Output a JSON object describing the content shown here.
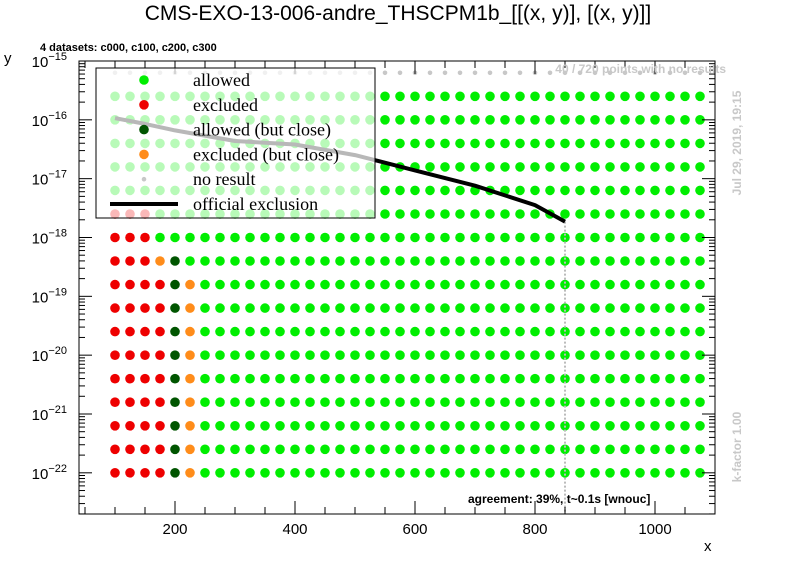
{
  "header": {
    "title": "CMS-EXO-13-006-andre_THSCPM1b_[[(x, y)], [(x, y)]]",
    "datasets_note": "4 datasets: c000, c100, c200, c300",
    "no_result_note": "40 / 720 points with no results",
    "date_note": "Jul 29, 2019, 19:15",
    "kfactor_note": "k-factor 1.00",
    "agreement_note": "agreement: 39%, t~0.1s [wnouc]"
  },
  "chart_data": {
    "type": "scatter",
    "xlabel": "x",
    "ylabel": "y",
    "xlim": [
      40,
      1100
    ],
    "ylim_log10": [
      -22.7,
      -15
    ],
    "log_y": true,
    "grid": false,
    "x_ticks": [
      200,
      400,
      600,
      800,
      1000
    ],
    "y_tick_exponents": [
      -22,
      -21,
      -20,
      -19,
      -18,
      -17,
      -16,
      -15
    ],
    "y_tick_labels": [
      "10",
      "10",
      "10",
      "10",
      "10",
      "10",
      "10",
      "10"
    ],
    "y_tick_sups": [
      "−22",
      "−21",
      "−20",
      "−19",
      "−18",
      "−17",
      "−16",
      "−15"
    ],
    "grid_x": {
      "start": 100,
      "step": 25,
      "count": 40
    },
    "grid_log10y": [
      -15.2,
      -15.6,
      -16,
      -16.4,
      -16.8,
      -17.2,
      -17.6,
      -18,
      -18.4,
      -18.8,
      -19.2,
      -19.6,
      -20,
      -20.4,
      -20.8,
      -21.2,
      -21.6,
      -22
    ],
    "row_overrides": {
      "-15.2": {
        "A": "na"
      },
      "-15.6": {
        "B": "ok"
      },
      "-16": {
        "B": "ok"
      },
      "-16.4": {
        "B": "ok"
      },
      "-16.8": {
        "B": "ok"
      },
      "-17.2": {
        "B": "ok"
      },
      "-17.6": {
        "0": "ex",
        "1": "ex",
        "2": "ex",
        "3": "ok",
        "B": "ok"
      },
      "-18": {
        "0": "ex",
        "1": "ex",
        "2": "ex",
        "3": "ok",
        "B": "ok"
      },
      "-18.4": {
        "0": "ex",
        "1": "ex",
        "2": "ex",
        "3": "cex",
        "4": "cok",
        "B": "ok"
      },
      "-18.8": {
        "0": "ex",
        "1": "ex",
        "2": "ex",
        "3": "ex",
        "4": "cok",
        "5": "cex",
        "B": "ok"
      },
      "-19.2": {
        "0": "ex",
        "1": "ex",
        "2": "ex",
        "3": "ex",
        "4": "cok",
        "5": "cex",
        "B": "ok"
      },
      "-19.6": {
        "0": "ex",
        "1": "ex",
        "2": "ex",
        "3": "ex",
        "4": "cok",
        "5": "cex",
        "B": "ok"
      },
      "-20": {
        "0": "ex",
        "1": "ex",
        "2": "ex",
        "3": "ex",
        "4": "cok",
        "5": "cex",
        "B": "ok"
      },
      "-20.4": {
        "0": "ex",
        "1": "ex",
        "2": "ex",
        "3": "ex",
        "4": "cok",
        "5": "cex",
        "B": "ok"
      },
      "-20.8": {
        "0": "ex",
        "1": "ex",
        "2": "ex",
        "3": "ex",
        "4": "cok",
        "5": "cex",
        "B": "ok"
      },
      "-21.2": {
        "0": "ex",
        "1": "ex",
        "2": "ex",
        "3": "ex",
        "4": "cok",
        "5": "cex",
        "B": "ok"
      },
      "-21.6": {
        "0": "ex",
        "1": "ex",
        "2": "ex",
        "3": "ex",
        "4": "cok",
        "5": "cex",
        "B": "ok"
      },
      "-22": {
        "0": "ex",
        "1": "ex",
        "2": "ex",
        "3": "ex",
        "4": "cok",
        "5": "cex",
        "B": "ok"
      }
    },
    "official_exclusion": {
      "x": [
        100,
        150,
        200,
        300,
        400,
        500,
        600,
        700,
        800,
        850
      ],
      "log10y": [
        -15.97,
        -16.07,
        -16.18,
        -16.36,
        -16.42,
        -16.6,
        -16.86,
        -17.12,
        -17.45,
        -17.73
      ]
    },
    "vertical_marker_x": 850,
    "legend": {
      "placement": "top-left",
      "entries": [
        {
          "key": "ok",
          "label": "allowed"
        },
        {
          "key": "ex",
          "label": "excluded"
        },
        {
          "key": "cok",
          "label": "allowed (but close)"
        },
        {
          "key": "cex",
          "label": "excluded (but close)"
        },
        {
          "key": "na",
          "label": "no result"
        },
        {
          "key": "line",
          "label": "official exclusion"
        }
      ]
    },
    "colors": {
      "ok": "#00ee00",
      "ex": "#ee0000",
      "cok": "#005500",
      "cex": "#ff8c1a",
      "na": "#c8c8c8",
      "line": "#000000",
      "watermark": "#c8c8c8"
    }
  }
}
